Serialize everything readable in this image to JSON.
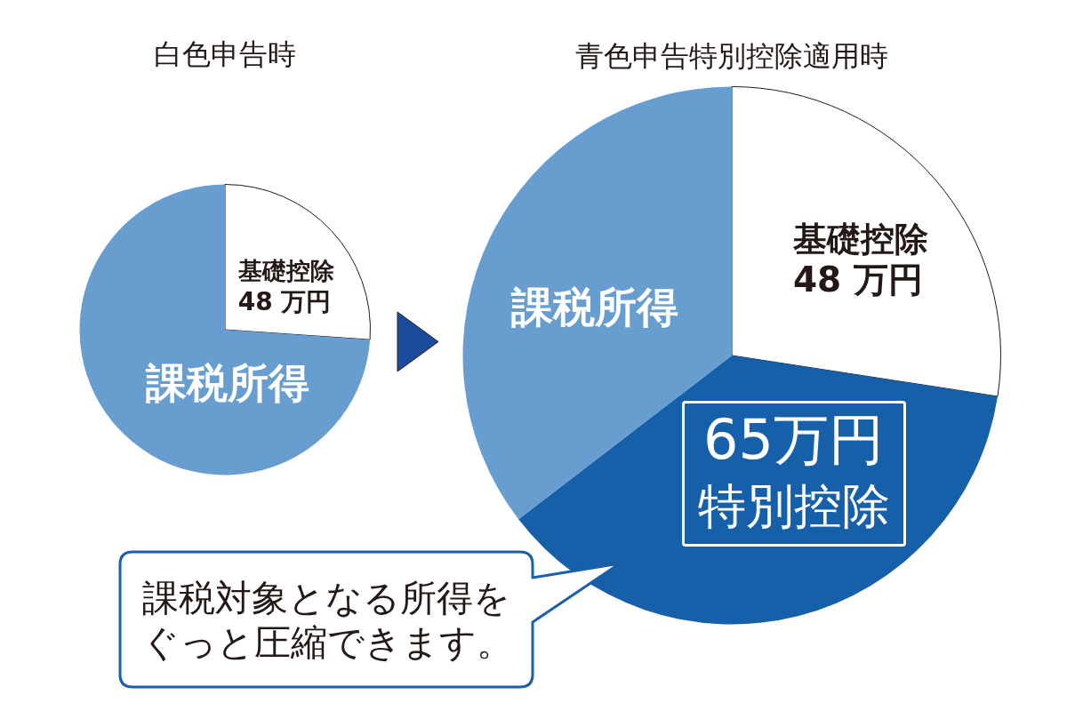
{
  "chart_data": [
    {
      "type": "pie",
      "title": "白色申告時",
      "categories": [
        "基礎控除",
        "課税所得"
      ],
      "values": [
        48,
        136
      ],
      "colors": [
        "#ffffff",
        "#689dd0"
      ],
      "value_labels": [
        "48 万円",
        null
      ]
    },
    {
      "type": "pie",
      "title": "青色申告特別控除適用時",
      "categories": [
        "基礎控除",
        "特別控除",
        "課税所得"
      ],
      "values": [
        48,
        65,
        62
      ],
      "colors": [
        "#ffffff",
        "#1560a8",
        "#689dd0"
      ],
      "value_labels": [
        "48 万円",
        "65万円",
        null
      ],
      "annotations": [
        "課税対象となる所得をぐっと圧縮できます。"
      ]
    }
  ]
}
